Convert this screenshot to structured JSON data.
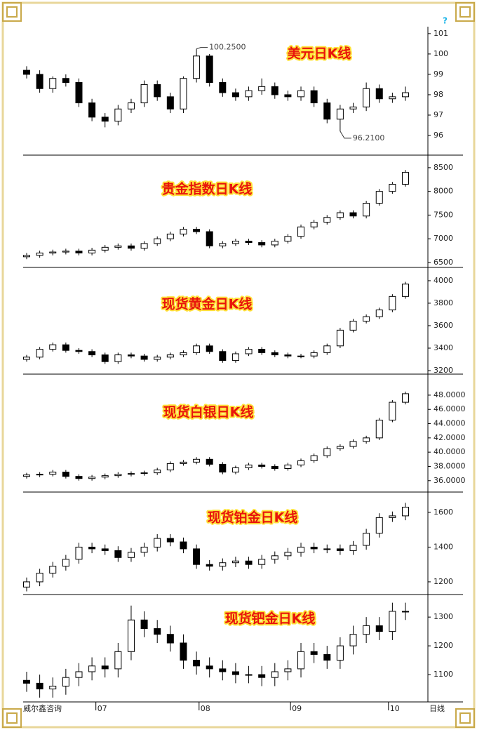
{
  "chart_data": [
    {
      "type": "candlestick",
      "title": "美元日K线",
      "xlim": [
        0,
        29
      ],
      "ylim": [
        95.07,
        101.34
      ],
      "yticks": [
        96,
        97,
        98,
        99,
        100,
        101
      ],
      "open": [
        99.2,
        99.0,
        98.3,
        98.8,
        98.6,
        97.6,
        96.9,
        96.7,
        97.3,
        97.6,
        98.5,
        97.9,
        97.3,
        98.8,
        99.9,
        98.6,
        98.1,
        97.9,
        98.2,
        98.4,
        98.0,
        97.9,
        98.2,
        97.6,
        96.8,
        97.3,
        97.4,
        98.3,
        97.8,
        97.9
      ],
      "high": [
        99.4,
        99.2,
        98.9,
        99.0,
        98.8,
        97.8,
        97.1,
        97.5,
        97.8,
        98.7,
        98.7,
        98.1,
        98.9,
        100.25,
        100.0,
        98.8,
        98.3,
        98.4,
        98.8,
        98.6,
        98.2,
        98.4,
        98.4,
        97.8,
        97.5,
        97.6,
        98.6,
        98.5,
        98.1,
        98.4
      ],
      "low": [
        98.8,
        98.1,
        98.1,
        98.4,
        97.4,
        96.7,
        96.4,
        96.5,
        97.1,
        97.4,
        97.7,
        97.1,
        97.1,
        98.6,
        98.4,
        97.9,
        97.7,
        97.7,
        98.0,
        97.8,
        97.7,
        97.7,
        97.4,
        96.6,
        96.21,
        97.1,
        97.2,
        97.6,
        97.6,
        97.7
      ],
      "close": [
        99.0,
        98.3,
        98.8,
        98.6,
        97.6,
        96.9,
        96.7,
        97.3,
        97.6,
        98.5,
        97.9,
        97.3,
        98.8,
        99.9,
        98.6,
        98.1,
        97.9,
        98.2,
        98.4,
        98.0,
        97.9,
        98.2,
        97.6,
        96.8,
        97.3,
        97.4,
        98.3,
        97.8,
        97.9,
        98.1
      ],
      "annotations": [
        {
          "text": "100.2500",
          "x": 13,
          "y": 100.25
        },
        {
          "text": "96.2100",
          "x": 24,
          "y": 96.21
        }
      ]
    },
    {
      "type": "candlestick",
      "title": "贵金指数日K线",
      "xlim": [
        0,
        29
      ],
      "ylim": [
        6410,
        8750
      ],
      "yticks": [
        6500,
        7000,
        7500,
        8000,
        8500
      ],
      "open": [
        6620,
        6650,
        6700,
        6720,
        6740,
        6700,
        6760,
        6820,
        6850,
        6800,
        6900,
        7000,
        7100,
        7200,
        7150,
        6850,
        6900,
        6950,
        6920,
        6870,
        6950,
        7050,
        7250,
        7350,
        7450,
        7550,
        7480,
        7750,
        8000,
        8150
      ],
      "high": [
        6700,
        6750,
        6770,
        6790,
        6790,
        6810,
        6870,
        6900,
        6900,
        6950,
        7050,
        7150,
        7250,
        7250,
        7200,
        6950,
        7000,
        7000,
        6970,
        7000,
        7100,
        7300,
        7400,
        7500,
        7600,
        7600,
        7800,
        8050,
        8200,
        8450
      ],
      "low": [
        6570,
        6600,
        6650,
        6670,
        6650,
        6650,
        6710,
        6770,
        6750,
        6750,
        6850,
        6950,
        7050,
        7100,
        6800,
        6800,
        6850,
        6870,
        6820,
        6820,
        6900,
        7000,
        7200,
        7300,
        7400,
        7430,
        7430,
        7700,
        7950,
        8100
      ],
      "close": [
        6650,
        6700,
        6720,
        6740,
        6700,
        6760,
        6820,
        6850,
        6800,
        6900,
        7000,
        7100,
        7200,
        7150,
        6850,
        6900,
        6950,
        6920,
        6870,
        6950,
        7050,
        7250,
        7350,
        7450,
        7550,
        7480,
        7750,
        8000,
        8150,
        8400
      ]
    },
    {
      "type": "candlestick",
      "title": "现货黄金日K线",
      "xlim": [
        0,
        29
      ],
      "ylim": [
        3175,
        4112
      ],
      "yticks": [
        3200,
        3400,
        3600,
        3800,
        4000
      ],
      "open": [
        3300,
        3320,
        3390,
        3430,
        3380,
        3370,
        3340,
        3280,
        3340,
        3330,
        3300,
        3320,
        3340,
        3360,
        3420,
        3370,
        3290,
        3350,
        3390,
        3360,
        3340,
        3330,
        3330,
        3360,
        3420,
        3560,
        3640,
        3680,
        3740,
        3860
      ],
      "high": [
        3340,
        3410,
        3450,
        3450,
        3400,
        3390,
        3360,
        3360,
        3360,
        3350,
        3340,
        3360,
        3380,
        3440,
        3440,
        3390,
        3370,
        3410,
        3410,
        3380,
        3360,
        3350,
        3380,
        3440,
        3580,
        3660,
        3700,
        3760,
        3880,
        3990
      ],
      "low": [
        3280,
        3300,
        3370,
        3360,
        3350,
        3320,
        3260,
        3260,
        3310,
        3280,
        3280,
        3300,
        3320,
        3340,
        3350,
        3270,
        3270,
        3330,
        3340,
        3320,
        3310,
        3310,
        3310,
        3340,
        3400,
        3540,
        3620,
        3660,
        3720,
        3840
      ],
      "close": [
        3320,
        3390,
        3430,
        3380,
        3370,
        3340,
        3280,
        3340,
        3330,
        3300,
        3320,
        3340,
        3360,
        3420,
        3370,
        3290,
        3350,
        3390,
        3360,
        3340,
        3330,
        3330,
        3360,
        3420,
        3560,
        3640,
        3680,
        3740,
        3860,
        3970
      ]
    },
    {
      "type": "candlestick",
      "title": "现货白银日K线",
      "xlim": [
        0,
        29
      ],
      "ylim": [
        34.5,
        50.85
      ],
      "yticks": [
        {
          "value": 36,
          "label": "36.0000"
        },
        {
          "value": 38,
          "label": "38.0000"
        },
        {
          "value": 40,
          "label": "40.0000"
        },
        {
          "value": 42,
          "label": "42.0000"
        },
        {
          "value": 44,
          "label": "44.0000"
        },
        {
          "value": 46,
          "label": "46.0000"
        },
        {
          "value": 48,
          "label": "48.0000"
        }
      ],
      "open": [
        36.6,
        36.8,
        36.9,
        37.2,
        36.6,
        36.3,
        36.5,
        36.7,
        36.9,
        37.0,
        37.1,
        37.5,
        38.4,
        38.6,
        39.0,
        38.3,
        37.2,
        37.8,
        38.2,
        38.0,
        37.7,
        38.2,
        38.8,
        39.5,
        40.5,
        40.8,
        41.5,
        42.0,
        44.5,
        47.0
      ],
      "high": [
        37.1,
        37.2,
        37.5,
        37.5,
        36.9,
        36.8,
        37.0,
        37.2,
        37.3,
        37.4,
        37.8,
        38.7,
        38.9,
        39.3,
        39.3,
        38.6,
        38.1,
        38.5,
        38.5,
        38.3,
        38.5,
        39.1,
        39.8,
        40.8,
        41.1,
        41.8,
        42.3,
        44.8,
        47.3,
        48.5
      ],
      "low": [
        36.3,
        36.5,
        36.6,
        36.3,
        36.0,
        36.0,
        36.2,
        36.4,
        36.6,
        36.7,
        36.8,
        37.2,
        38.1,
        38.3,
        38.0,
        36.9,
        36.9,
        37.5,
        37.7,
        37.4,
        37.4,
        37.9,
        38.5,
        39.2,
        40.2,
        40.5,
        41.2,
        41.7,
        44.2,
        46.7
      ],
      "close": [
        36.8,
        36.9,
        37.2,
        36.6,
        36.3,
        36.5,
        36.7,
        36.9,
        37.0,
        37.1,
        37.5,
        38.4,
        38.6,
        39.0,
        38.3,
        37.2,
        37.8,
        38.2,
        38.0,
        37.7,
        38.2,
        38.8,
        39.5,
        40.5,
        40.8,
        41.5,
        42.0,
        44.5,
        47.0,
        48.2
      ]
    },
    {
      "type": "candlestick",
      "title": "现货铂金日K线",
      "xlim": [
        0,
        29
      ],
      "ylim": [
        1131,
        1713
      ],
      "yticks": [
        1200,
        1400,
        1600
      ],
      "open": [
        1170,
        1200,
        1250,
        1290,
        1330,
        1400,
        1390,
        1380,
        1340,
        1370,
        1400,
        1450,
        1430,
        1390,
        1300,
        1290,
        1310,
        1320,
        1300,
        1330,
        1350,
        1370,
        1400,
        1390,
        1390,
        1380,
        1410,
        1480,
        1570,
        1580
      ],
      "high": [
        1225,
        1275,
        1315,
        1355,
        1425,
        1425,
        1415,
        1405,
        1395,
        1425,
        1475,
        1475,
        1455,
        1415,
        1325,
        1335,
        1345,
        1345,
        1355,
        1375,
        1395,
        1425,
        1425,
        1415,
        1415,
        1435,
        1505,
        1595,
        1605,
        1655
      ],
      "low": [
        1145,
        1175,
        1225,
        1265,
        1305,
        1365,
        1355,
        1315,
        1315,
        1345,
        1375,
        1405,
        1365,
        1275,
        1265,
        1265,
        1285,
        1275,
        1275,
        1305,
        1325,
        1345,
        1365,
        1365,
        1355,
        1355,
        1385,
        1455,
        1545,
        1555
      ],
      "close": [
        1200,
        1250,
        1290,
        1330,
        1400,
        1390,
        1380,
        1340,
        1370,
        1400,
        1450,
        1430,
        1390,
        1300,
        1290,
        1310,
        1320,
        1300,
        1330,
        1350,
        1370,
        1400,
        1390,
        1390,
        1380,
        1410,
        1480,
        1570,
        1580,
        1630
      ]
    },
    {
      "type": "candlestick",
      "title": "现货钯金日K线",
      "xlim": [
        0,
        29
      ],
      "ylim": [
        1005,
        1376
      ],
      "yticks": [
        1100,
        1200,
        1300
      ],
      "xticks": [
        {
          "value": 5.3,
          "label": "07"
        },
        {
          "value": 13.2,
          "label": "08"
        },
        {
          "value": 20.2,
          "label": "09"
        },
        {
          "value": 27.7,
          "label": "10"
        }
      ],
      "open": [
        1080,
        1070,
        1050,
        1060,
        1090,
        1110,
        1130,
        1120,
        1180,
        1290,
        1260,
        1240,
        1210,
        1150,
        1130,
        1120,
        1110,
        1100,
        1100,
        1090,
        1110,
        1120,
        1180,
        1170,
        1150,
        1200,
        1240,
        1270,
        1250,
        1320
      ],
      "high": [
        1110,
        1100,
        1090,
        1120,
        1140,
        1160,
        1160,
        1210,
        1340,
        1320,
        1290,
        1270,
        1240,
        1180,
        1160,
        1150,
        1140,
        1130,
        1130,
        1140,
        1150,
        1210,
        1210,
        1200,
        1230,
        1270,
        1300,
        1300,
        1350,
        1350
      ],
      "low": [
        1040,
        1020,
        1020,
        1030,
        1060,
        1080,
        1090,
        1090,
        1150,
        1230,
        1210,
        1180,
        1120,
        1100,
        1090,
        1080,
        1070,
        1070,
        1060,
        1060,
        1080,
        1090,
        1140,
        1120,
        1120,
        1170,
        1210,
        1220,
        1220,
        1290
      ],
      "close": [
        1070,
        1050,
        1060,
        1090,
        1110,
        1130,
        1120,
        1180,
        1290,
        1260,
        1240,
        1210,
        1150,
        1130,
        1120,
        1110,
        1100,
        1100,
        1090,
        1110,
        1120,
        1180,
        1170,
        1150,
        1200,
        1240,
        1270,
        1250,
        1320,
        1320
      ]
    }
  ],
  "source": "威尔鑫咨询",
  "period": "日线",
  "help_icon": "?"
}
